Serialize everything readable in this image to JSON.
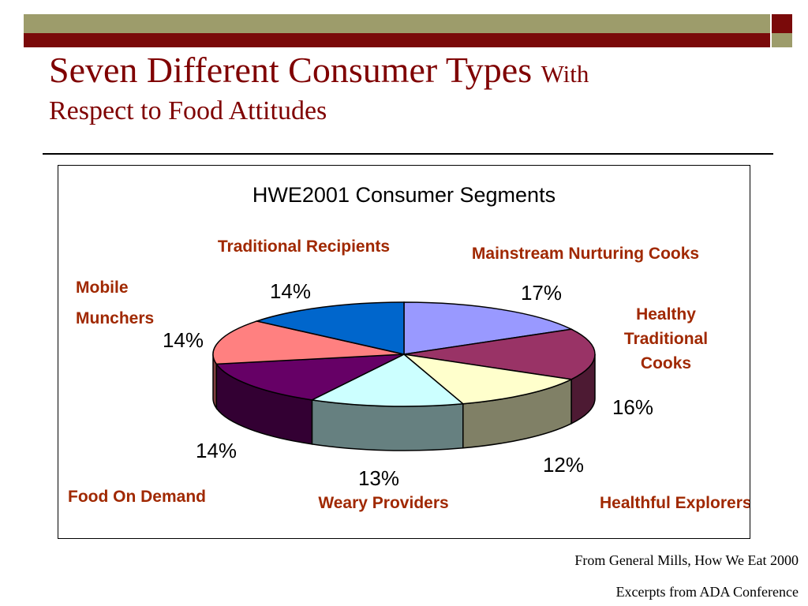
{
  "slide": {
    "title_main": "Seven Different Consumer Types",
    "title_small": "With",
    "title_line2": "Respect to Food Attitudes"
  },
  "colors": {
    "title": "#7f0000",
    "label": "#a02800",
    "bar_olive": "#9d9c6b",
    "bar_maroon": "#7a0a0a"
  },
  "chart_data": {
    "type": "pie",
    "title": "HWE2001 Consumer Segments",
    "series": [
      {
        "name": "Mainstream Nurturing Cooks",
        "value": 17,
        "label": "17%",
        "color": "#9999ff",
        "side": "#5a5ac0"
      },
      {
        "name": "Healthy Traditional Cooks",
        "value": 16,
        "label": "16%",
        "color": "#993366",
        "side": "#4d1a33"
      },
      {
        "name": "Healthful Explorers",
        "value": 12,
        "label": "12%",
        "color": "#ffffcc",
        "side": "#808066"
      },
      {
        "name": "Weary Providers",
        "value": 13,
        "label": "13%",
        "color": "#ccffff",
        "side": "#668080"
      },
      {
        "name": "Food On Demand",
        "value": 14,
        "label": "14%",
        "color": "#660066",
        "side": "#330033"
      },
      {
        "name": "Mobile Munchers",
        "value": 14,
        "label": "14%",
        "color": "#ff8080",
        "side": "#804040"
      },
      {
        "name": "Traditional Recipients",
        "value": 14,
        "label": "14%",
        "color": "#0066cc",
        "side": "#003366"
      }
    ]
  },
  "source": {
    "line1": "From General Mills, How We Eat 2000",
    "line2": "Excerpts from ADA Conference"
  }
}
